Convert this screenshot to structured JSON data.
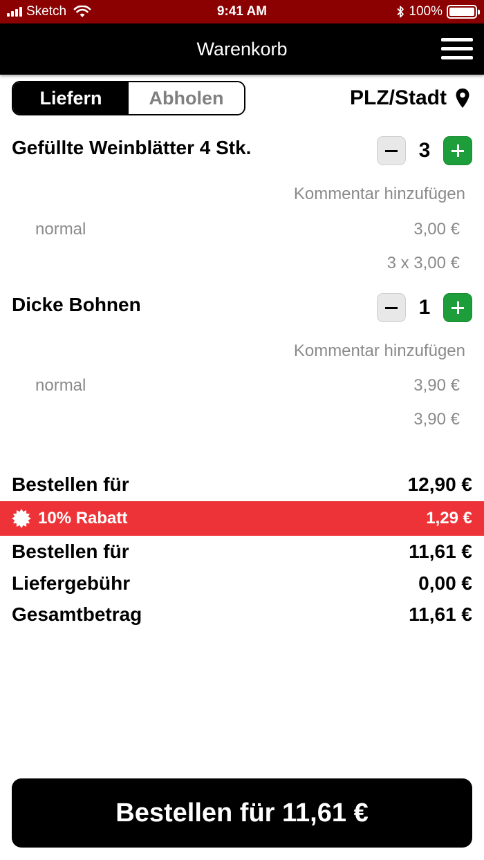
{
  "status_bar": {
    "carrier": "Sketch",
    "time": "9:41 AM",
    "battery": "100%"
  },
  "nav": {
    "title": "Warenkorb"
  },
  "delivery_toggle": {
    "options": [
      "Liefern",
      "Abholen"
    ],
    "selected": "Liefern"
  },
  "location": {
    "label": "PLZ/Stadt"
  },
  "cart": {
    "items": [
      {
        "name": "Gefüllte Weinblätter 4 Stk.",
        "quantity": "3",
        "comment_label": "Kommentar hinzufügen",
        "variant": "normal",
        "unit_price": "3,00 €",
        "line_total": "3 x 3,00 €"
      },
      {
        "name": "Dicke Bohnen",
        "quantity": "1",
        "comment_label": "Kommentar hinzufügen",
        "variant": "normal",
        "unit_price": "3,90 €",
        "line_total": "3,90 €"
      }
    ]
  },
  "summary": {
    "subtotal_label": "Bestellen für",
    "subtotal": "12,90 €",
    "discount_label": "10% Rabatt",
    "discount": "1,29 €",
    "after_discount_label": "Bestellen für",
    "after_discount": "11,61 €",
    "delivery_fee_label": "Liefergebühr",
    "delivery_fee": "0,00 €",
    "total_label": "Gesamtbetrag",
    "total": "11,61 €"
  },
  "order_button": {
    "label": "Bestellen für 11,61 €"
  },
  "colors": {
    "status_bar": "#8b0000",
    "nav_bar": "#000000",
    "discount_bar": "#ee3338",
    "plus_button": "#1e9e3a"
  },
  "icons": [
    "signal-icon",
    "wifi-icon",
    "bluetooth-icon",
    "battery-icon",
    "menu-icon",
    "location-pin-icon",
    "minus-icon",
    "plus-icon",
    "discount-badge-icon"
  ]
}
